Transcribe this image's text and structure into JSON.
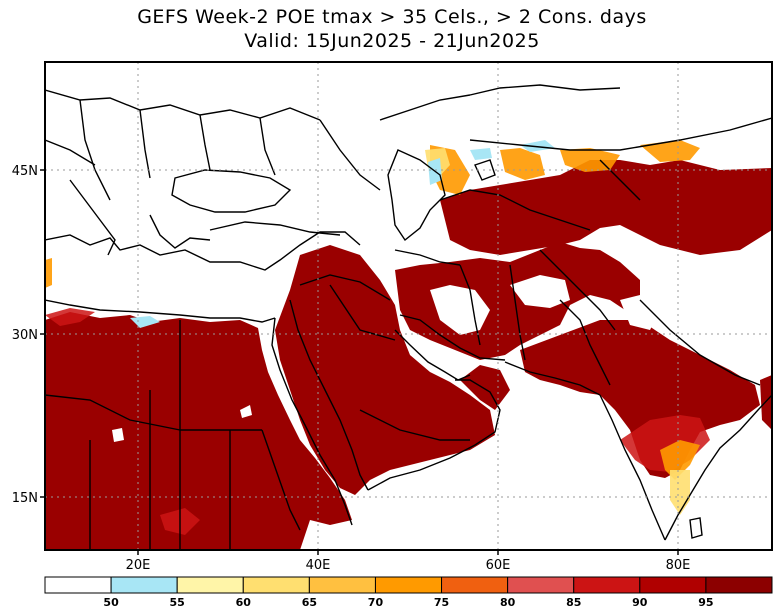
{
  "title": {
    "line1": "GEFS Week-2 POE tmax > 35 Cels., > 2 Cons. days",
    "line2": "Valid: 15Jun2025 - 21Jun2025"
  },
  "axes": {
    "lat_labels": [
      "45N",
      "30N",
      "15N"
    ],
    "lon_labels": [
      "20E",
      "40E",
      "60E",
      "80E"
    ]
  },
  "colorbar": {
    "labels": [
      "50",
      "55",
      "60",
      "65",
      "70",
      "75",
      "80",
      "85",
      "90",
      "95"
    ],
    "colors": [
      "#ffffff",
      "#a8e6f5",
      "#fff5a8",
      "#ffdf70",
      "#ffc040",
      "#ff9a00",
      "#f06010",
      "#e05050",
      "#cc1414",
      "#b00000",
      "#8c0000"
    ]
  },
  "map": {
    "field_color_high": "#9a0000",
    "field_color_mid": "#e04a20",
    "field_color_low": "#ffb030"
  }
}
